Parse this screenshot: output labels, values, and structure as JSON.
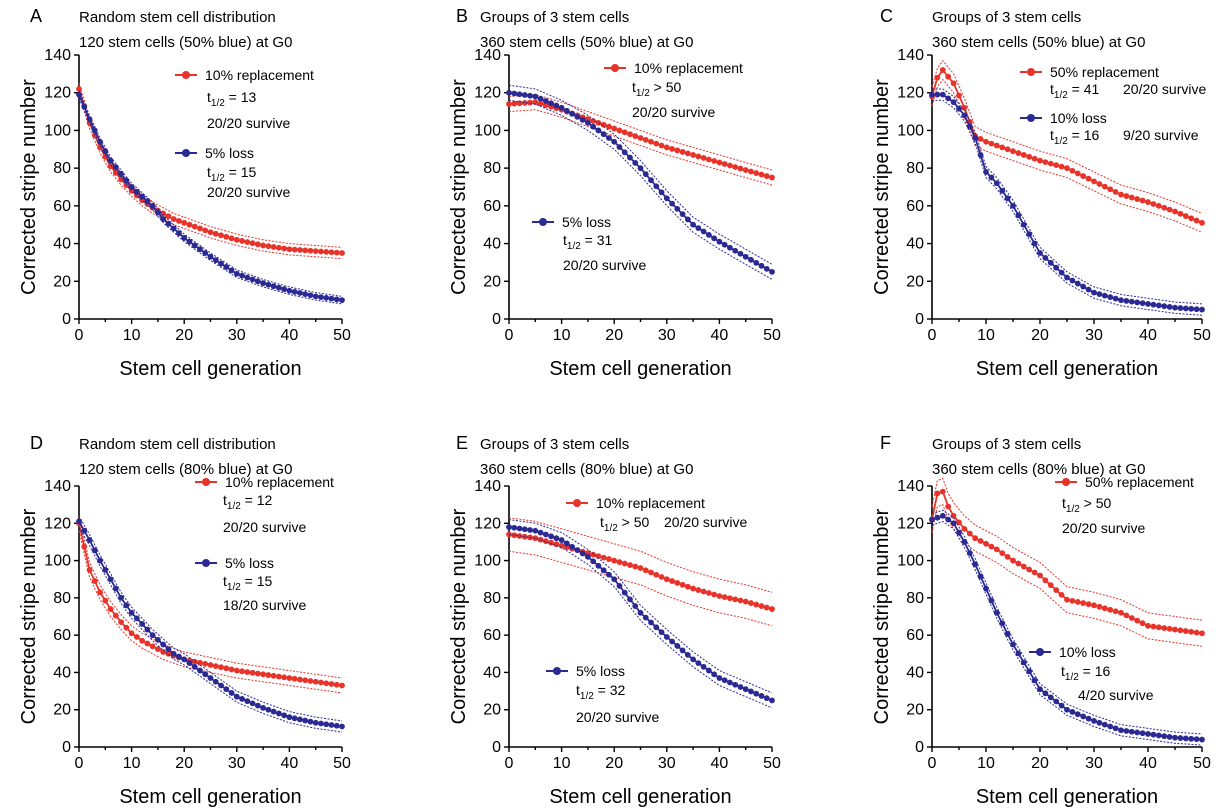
{
  "colors": {
    "red": "#e8332a",
    "blue": "#2b2a93"
  },
  "chart_data": [
    {
      "panel": "A",
      "type": "line",
      "title_lines": [
        "Random stem cell distribution",
        "120 stem cells (50% blue) at G0"
      ],
      "xlabel": "Stem cell generation",
      "ylabel": "Corrected stripe number",
      "xlim": [
        0,
        50
      ],
      "ylim": [
        0,
        140
      ],
      "xticks": [
        "0",
        "10",
        "20",
        "30",
        "40",
        "50"
      ],
      "yticks": [
        "0",
        "20",
        "40",
        "60",
        "80",
        "100",
        "120",
        "140"
      ],
      "series": [
        {
          "name": "10% replacement",
          "color": "red",
          "half_life": "= 13",
          "survive": "20/20 survive",
          "x": [
            0,
            2,
            4,
            6,
            8,
            10,
            12,
            14,
            16,
            18,
            20,
            25,
            30,
            35,
            40,
            45,
            50
          ],
          "y": [
            122,
            104,
            91,
            81,
            74,
            68,
            63,
            59,
            56,
            53,
            51,
            46,
            42,
            39,
            37,
            36,
            35
          ],
          "band": 3
        },
        {
          "name": "5% loss",
          "color": "blue",
          "half_life": "= 15",
          "survive": "20/20 survive",
          "x": [
            0,
            2,
            4,
            6,
            8,
            10,
            12,
            14,
            16,
            18,
            20,
            25,
            30,
            35,
            40,
            45,
            50
          ],
          "y": [
            119,
            106,
            94,
            84,
            77,
            70,
            65,
            60,
            53,
            48,
            43,
            33,
            24,
            19,
            15,
            12,
            10
          ],
          "band": 2
        }
      ]
    },
    {
      "panel": "B",
      "type": "line",
      "title_lines": [
        "Groups of 3 stem cells",
        "360 stem cells (50% blue) at G0"
      ],
      "xlabel": "Stem cell generation",
      "ylabel": "Corrected stripe number",
      "xlim": [
        0,
        50
      ],
      "ylim": [
        0,
        140
      ],
      "xticks": [
        "0",
        "10",
        "20",
        "30",
        "40",
        "50"
      ],
      "yticks": [
        "0",
        "20",
        "40",
        "60",
        "80",
        "100",
        "120",
        "140"
      ],
      "series": [
        {
          "name": "10% replacement",
          "color": "red",
          "half_life": "> 50",
          "survive": "20/20 survive",
          "x": [
            0,
            5,
            10,
            15,
            20,
            25,
            30,
            35,
            40,
            45,
            50
          ],
          "y": [
            114,
            115,
            111,
            106,
            101,
            96,
            91,
            87,
            83,
            79,
            75
          ],
          "band": 4
        },
        {
          "name": "5% loss",
          "color": "blue",
          "half_life": "= 31",
          "survive": "20/20 survive",
          "x": [
            0,
            5,
            10,
            15,
            20,
            25,
            30,
            35,
            40,
            45,
            50
          ],
          "y": [
            120,
            118,
            112,
            104,
            94,
            80,
            64,
            50,
            41,
            33,
            25
          ],
          "band": 4
        }
      ]
    },
    {
      "panel": "C",
      "type": "line",
      "title_lines": [
        "Groups of 3 stem cells",
        "360 stem cells (50% blue) at G0"
      ],
      "xlabel": "Stem cell generation",
      "ylabel": "Corrected stripe number",
      "xlim": [
        0,
        50
      ],
      "ylim": [
        0,
        140
      ],
      "xticks": [
        "0",
        "10",
        "20",
        "30",
        "40",
        "50"
      ],
      "yticks": [
        "0",
        "20",
        "40",
        "60",
        "80",
        "100",
        "120",
        "140"
      ],
      "series": [
        {
          "name": "50% replacement",
          "color": "red",
          "half_life": "= 41",
          "survive": "20/20 survive",
          "x": [
            0,
            1,
            2,
            4,
            6,
            8,
            10,
            12,
            15,
            20,
            25,
            30,
            35,
            40,
            45,
            50
          ],
          "y": [
            118,
            128,
            132,
            125,
            112,
            97,
            94,
            92,
            89,
            84,
            80,
            73,
            66,
            62,
            57,
            51
          ],
          "band": 5
        },
        {
          "name": "10% loss",
          "color": "blue",
          "half_life": "= 16",
          "survive": "9/20 survive",
          "x": [
            0,
            2,
            4,
            6,
            8,
            10,
            12,
            15,
            20,
            25,
            30,
            35,
            40,
            45,
            50
          ],
          "y": [
            119,
            119,
            115,
            108,
            96,
            78,
            72,
            60,
            35,
            22,
            14,
            10,
            8,
            6,
            5
          ],
          "band": 3
        }
      ]
    },
    {
      "panel": "D",
      "type": "line",
      "title_lines": [
        "Random stem cell distribution",
        "120 stem cells (80% blue) at G0"
      ],
      "xlabel": "Stem cell generation",
      "ylabel": "Corrected stripe number",
      "xlim": [
        0,
        50
      ],
      "ylim": [
        0,
        140
      ],
      "xticks": [
        "0",
        "10",
        "20",
        "30",
        "40",
        "50"
      ],
      "yticks": [
        "0",
        "20",
        "40",
        "60",
        "80",
        "100",
        "120",
        "140"
      ],
      "series": [
        {
          "name": "10% replacement",
          "color": "red",
          "half_life": "= 12",
          "survive": "20/20 survive",
          "x": [
            0,
            2,
            4,
            6,
            8,
            10,
            12,
            14,
            16,
            18,
            20,
            25,
            30,
            35,
            40,
            45,
            50
          ],
          "y": [
            120,
            95,
            83,
            74,
            67,
            61,
            57,
            54,
            51,
            49,
            47,
            44,
            41,
            39,
            37,
            35,
            33
          ],
          "band": 4
        },
        {
          "name": "5% loss",
          "color": "blue",
          "half_life": "= 15",
          "survive": "18/20 survive",
          "x": [
            0,
            2,
            4,
            6,
            8,
            10,
            12,
            14,
            16,
            18,
            20,
            25,
            30,
            35,
            40,
            45,
            50
          ],
          "y": [
            121,
            111,
            100,
            90,
            80,
            72,
            66,
            60,
            55,
            50,
            47,
            37,
            27,
            21,
            16,
            13,
            11
          ],
          "band": 3
        }
      ]
    },
    {
      "panel": "E",
      "type": "line",
      "title_lines": [
        "Groups of 3 stem cells",
        "360 stem cells (80% blue) at G0"
      ],
      "xlabel": "Stem cell generation",
      "ylabel": "Corrected stripe number",
      "xlim": [
        0,
        50
      ],
      "ylim": [
        0,
        140
      ],
      "xticks": [
        "0",
        "10",
        "20",
        "30",
        "40",
        "50"
      ],
      "yticks": [
        "0",
        "20",
        "40",
        "60",
        "80",
        "100",
        "120",
        "140"
      ],
      "series": [
        {
          "name": "10% replacement",
          "color": "red",
          "half_life": "> 50",
          "survive": "20/20 survive",
          "x": [
            0,
            5,
            10,
            15,
            20,
            25,
            30,
            35,
            40,
            45,
            50
          ],
          "y": [
            114,
            112,
            108,
            104,
            100,
            96,
            90,
            85,
            81,
            78,
            74
          ],
          "band": 9
        },
        {
          "name": "5% loss",
          "color": "blue",
          "half_life": "= 32",
          "survive": "20/20 survive",
          "x": [
            0,
            5,
            10,
            15,
            20,
            25,
            30,
            35,
            40,
            45,
            50
          ],
          "y": [
            118,
            116,
            111,
            102,
            90,
            72,
            59,
            47,
            37,
            31,
            25
          ],
          "band": 4
        }
      ]
    },
    {
      "panel": "F",
      "type": "line",
      "title_lines": [
        "Groups of 3 stem cells",
        "360 stem cells (80% blue) at G0"
      ],
      "xlabel": "Stem cell generation",
      "ylabel": "Corrected stripe number",
      "xlim": [
        0,
        50
      ],
      "ylim": [
        0,
        140
      ],
      "xticks": [
        "0",
        "10",
        "20",
        "30",
        "40",
        "50"
      ],
      "yticks": [
        "0",
        "20",
        "40",
        "60",
        "80",
        "100",
        "120",
        "140"
      ],
      "series": [
        {
          "name": "50% replacement",
          "color": "red",
          "half_life": "> 50",
          "survive": "20/20 survive",
          "x": [
            0,
            1,
            2,
            3,
            4,
            6,
            8,
            10,
            12,
            15,
            20,
            25,
            30,
            35,
            40,
            45,
            50
          ],
          "y": [
            122,
            136,
            137,
            129,
            124,
            117,
            112,
            109,
            106,
            100,
            92,
            79,
            76,
            72,
            65,
            63,
            61
          ],
          "band": 7
        },
        {
          "name": "10% loss",
          "color": "blue",
          "half_life": "= 16",
          "survive": "4/20 survive",
          "x": [
            0,
            2,
            4,
            6,
            8,
            10,
            12,
            15,
            20,
            25,
            30,
            35,
            40,
            45,
            50
          ],
          "y": [
            122,
            124,
            120,
            110,
            98,
            85,
            72,
            55,
            31,
            20,
            14,
            9,
            7,
            5,
            4
          ],
          "band": 3
        }
      ]
    }
  ]
}
